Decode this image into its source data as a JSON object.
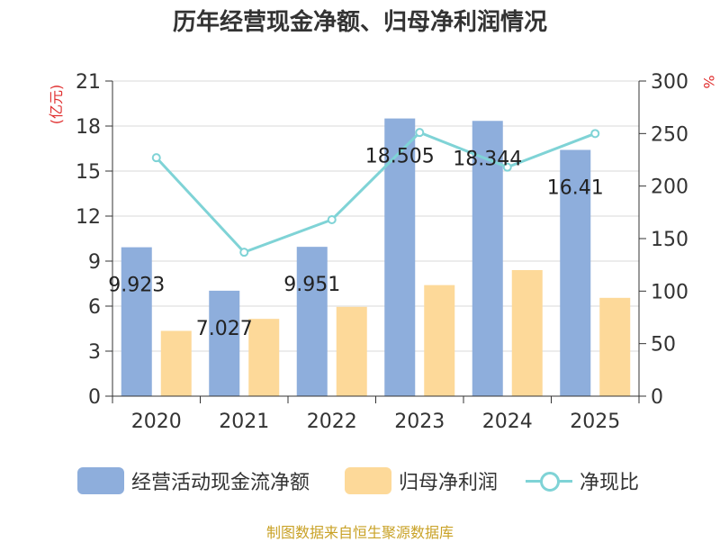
{
  "chart_data": {
    "type": "bar+line",
    "title": "历年经营现金净额、归母净利润情况",
    "y_left_label": "(亿元)",
    "y_right_label": "%",
    "y_left_ticks": [
      0,
      3,
      6,
      9,
      12,
      15,
      18,
      21
    ],
    "y_right_ticks": [
      0,
      50,
      100,
      150,
      200,
      250,
      300
    ],
    "ylim_left": [
      0,
      21
    ],
    "ylim_right": [
      0,
      300
    ],
    "categories": [
      "2020",
      "2021",
      "2022",
      "2023",
      "2024",
      "2025"
    ],
    "series": [
      {
        "name": "经营活动现金流净额",
        "type": "bar",
        "axis": "left",
        "values": [
          9.923,
          7.027,
          9.951,
          18.505,
          18.344,
          16.41
        ],
        "labels": [
          "9.923",
          "7.027",
          "9.951",
          "18.505",
          "18.344",
          "16.41"
        ],
        "color": "#8eaedc"
      },
      {
        "name": "归母净利润",
        "type": "bar",
        "axis": "left",
        "values": [
          4.35,
          5.15,
          5.95,
          7.4,
          8.4,
          6.55
        ],
        "color": "#fdd999"
      },
      {
        "name": "净现比",
        "type": "line",
        "axis": "right",
        "values": [
          227,
          137,
          168,
          251,
          218,
          250
        ],
        "color": "#7fd3d6"
      }
    ],
    "grid": true,
    "legend_position": "bottom"
  },
  "source": "制图数据来自恒生聚源数据库"
}
